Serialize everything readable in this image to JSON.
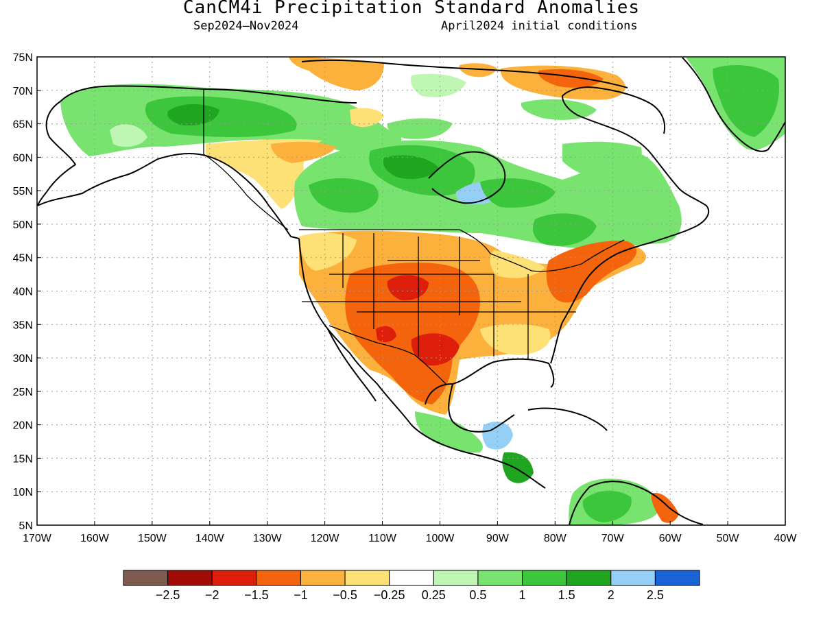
{
  "header": {
    "title": "CanCM4i Precipitation Standard Anomalies",
    "period": "Sep2024–Nov2024",
    "init": "April2024 initial conditions"
  },
  "axes": {
    "lat_labels": [
      "75N",
      "70N",
      "65N",
      "60N",
      "55N",
      "50N",
      "45N",
      "40N",
      "35N",
      "30N",
      "25N",
      "20N",
      "15N",
      "10N",
      "5N"
    ],
    "lon_labels": [
      "170W",
      "160W",
      "150W",
      "140W",
      "130W",
      "120W",
      "110W",
      "100W",
      "90W",
      "80W",
      "70W",
      "60W",
      "50W",
      "40W"
    ]
  },
  "colorbar": {
    "colors": [
      "#7f5a4f",
      "#a10b05",
      "#dc1e0a",
      "#f4640d",
      "#fbb13c",
      "#fde176",
      "#ffffff",
      "#bff6b3",
      "#78e46f",
      "#3cc63c",
      "#1fa51f",
      "#96cff5",
      "#1a63d7"
    ],
    "labels": [
      "−2.5",
      "−2",
      "−1.5",
      "−1",
      "−0.5",
      "−0.25",
      "0.25",
      "0.5",
      "1",
      "1.5",
      "2",
      "2.5"
    ]
  }
}
